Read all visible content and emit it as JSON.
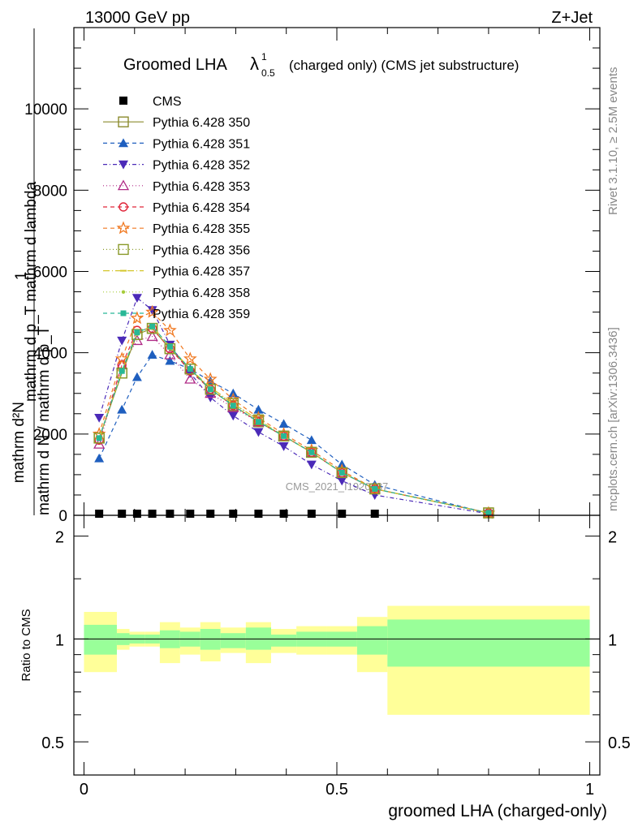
{
  "header": {
    "energy": "13000 GeV pp",
    "process": "Z+Jet",
    "title_main": "Groomed LHA",
    "title_symbol": "λ",
    "title_sup": "1",
    "title_sub": "0.5",
    "title_tail": "(charged only) (CMS jet substructure)",
    "rivet": "Rivet 3.1.10, ≥ 2.5M events",
    "mcplots": "mcplots.cern.ch [arXiv:1306.3436]",
    "watermark": "CMS_2021_I1920187"
  },
  "axes": {
    "ylabel_num": "mathrm d²N",
    "ylabel_den": "mathrm d p_T mathrm d lambda",
    "ylabel_one": "1",
    "ylabel_norm": "mathrm d N / mathrm d p_T",
    "ratio_ylabel": "Ratio to CMS",
    "xlabel": "groomed LHA (charged-only)"
  },
  "chart_data": [
    {
      "type": "line",
      "panel": "main",
      "x": [
        0.03,
        0.075,
        0.105,
        0.135,
        0.17,
        0.21,
        0.25,
        0.295,
        0.345,
        0.395,
        0.45,
        0.51,
        0.575,
        0.8
      ],
      "xlim": [
        -0.02,
        1.02
      ],
      "ylim": [
        0,
        12000
      ],
      "yticks": [
        0,
        2000,
        4000,
        6000,
        8000,
        10000
      ],
      "ytick_labels": [
        "0",
        "2000",
        "4000",
        "6000",
        "8000",
        "10000"
      ],
      "xticks": [
        0,
        0.5,
        1
      ],
      "legend_position": "top-left",
      "cms_y": [
        0,
        0,
        0,
        0,
        0,
        0,
        0,
        0,
        0,
        0,
        0,
        0,
        0
      ],
      "series": [
        {
          "name": "CMS",
          "color": "#000000",
          "marker": "square-filled",
          "dash": "none",
          "y": [
            0,
            0,
            0,
            0,
            0,
            0,
            0,
            0,
            0,
            0,
            0,
            0,
            0,
            null
          ]
        },
        {
          "name": "Pythia 6.428 350",
          "color": "#8b8b2e",
          "marker": "square-open",
          "dash": "solid",
          "y": [
            1900,
            3500,
            4450,
            4600,
            4100,
            3600,
            3100,
            2700,
            2300,
            1950,
            1550,
            1050,
            650,
            60
          ]
        },
        {
          "name": "Pythia 6.428 351",
          "color": "#1f5fbf",
          "marker": "triangle-up-filled",
          "dash": "5,4",
          "y": [
            1400,
            2600,
            3400,
            3950,
            3800,
            3600,
            3300,
            3000,
            2600,
            2250,
            1850,
            1250,
            750,
            50
          ]
        },
        {
          "name": "Pythia 6.428 352",
          "color": "#4b2ab8",
          "marker": "triangle-down-filled",
          "dash": "5,3,1,3",
          "y": [
            2400,
            4300,
            5350,
            5050,
            4200,
            3500,
            2900,
            2450,
            2050,
            1700,
            1250,
            850,
            500,
            40
          ]
        },
        {
          "name": "Pythia 6.428 353",
          "color": "#b02a86",
          "marker": "triangle-up-open",
          "dash": "1,3",
          "y": [
            1750,
            3700,
            4300,
            4400,
            3950,
            3350,
            3000,
            2650,
            2300,
            1950,
            1550,
            1050,
            650,
            60
          ]
        },
        {
          "name": "Pythia 6.428 354",
          "color": "#e0263a",
          "marker": "circle-open",
          "dash": "5,4",
          "y": [
            1850,
            3700,
            4550,
            4600,
            4100,
            3550,
            3100,
            2700,
            2300,
            1950,
            1550,
            1050,
            650,
            60
          ]
        },
        {
          "name": "Pythia 6.428 355",
          "color": "#f07820",
          "marker": "star-open",
          "dash": "5,4",
          "y": [
            2000,
            3850,
            4850,
            5000,
            4550,
            3850,
            3350,
            2850,
            2400,
            2000,
            1600,
            1100,
            650,
            55
          ]
        },
        {
          "name": "Pythia 6.428 356",
          "color": "#8a9a2a",
          "marker": "square-open",
          "dash": "1,3",
          "y": [
            1900,
            3500,
            4450,
            4600,
            4100,
            3600,
            3100,
            2750,
            2350,
            1950,
            1550,
            1050,
            650,
            60
          ]
        },
        {
          "name": "Pythia 6.428 357",
          "color": "#d4c62a",
          "marker": "dash-marker",
          "dash": "8,3,1,3",
          "y": [
            1900,
            3550,
            4500,
            4650,
            4150,
            3600,
            3150,
            2750,
            2350,
            1950,
            1550,
            1050,
            650,
            60
          ]
        },
        {
          "name": "Pythia 6.428 358",
          "color": "#a6cc3a",
          "marker": "dot",
          "dash": "1,3",
          "y": [
            1900,
            3550,
            4450,
            4600,
            4100,
            3600,
            3100,
            2700,
            2300,
            1950,
            1550,
            1050,
            650,
            60
          ]
        },
        {
          "name": "Pythia 6.428 359",
          "color": "#28b896",
          "marker": "square-filled-small",
          "dash": "5,4",
          "y": [
            1900,
            3550,
            4500,
            4650,
            4150,
            3600,
            3100,
            2700,
            2300,
            1950,
            1550,
            1050,
            650,
            60
          ]
        }
      ]
    },
    {
      "type": "area",
      "panel": "ratio",
      "xlim": [
        -0.02,
        1.02
      ],
      "ylim": [
        0.4,
        2.3
      ],
      "yticks": [
        0.5,
        1,
        2
      ],
      "ytick_labels": [
        "0.5",
        "1",
        "2"
      ],
      "xticks": [
        0,
        0.5,
        1
      ],
      "xtick_labels": [
        "0",
        "0.5",
        "1"
      ],
      "bins": [
        {
          "lo": 0.0,
          "hi": 0.065,
          "inner": [
            0.9,
            1.1
          ],
          "outer": [
            0.8,
            1.2
          ]
        },
        {
          "lo": 0.065,
          "hi": 0.09,
          "inner": [
            0.96,
            1.04
          ],
          "outer": [
            0.93,
            1.07
          ]
        },
        {
          "lo": 0.09,
          "hi": 0.12,
          "inner": [
            0.97,
            1.03
          ],
          "outer": [
            0.95,
            1.05
          ]
        },
        {
          "lo": 0.12,
          "hi": 0.15,
          "inner": [
            0.97,
            1.03
          ],
          "outer": [
            0.95,
            1.05
          ]
        },
        {
          "lo": 0.15,
          "hi": 0.19,
          "inner": [
            0.94,
            1.06
          ],
          "outer": [
            0.85,
            1.12
          ]
        },
        {
          "lo": 0.19,
          "hi": 0.23,
          "inner": [
            0.95,
            1.05
          ],
          "outer": [
            0.9,
            1.08
          ]
        },
        {
          "lo": 0.23,
          "hi": 0.27,
          "inner": [
            0.93,
            1.07
          ],
          "outer": [
            0.86,
            1.12
          ]
        },
        {
          "lo": 0.27,
          "hi": 0.32,
          "inner": [
            0.94,
            1.04
          ],
          "outer": [
            0.91,
            1.08
          ]
        },
        {
          "lo": 0.32,
          "hi": 0.37,
          "inner": [
            0.93,
            1.08
          ],
          "outer": [
            0.85,
            1.12
          ]
        },
        {
          "lo": 0.37,
          "hi": 0.42,
          "inner": [
            0.95,
            1.03
          ],
          "outer": [
            0.91,
            1.07
          ]
        },
        {
          "lo": 0.42,
          "hi": 0.48,
          "inner": [
            0.95,
            1.05
          ],
          "outer": [
            0.9,
            1.09
          ]
        },
        {
          "lo": 0.48,
          "hi": 0.54,
          "inner": [
            0.95,
            1.05
          ],
          "outer": [
            0.9,
            1.09
          ]
        },
        {
          "lo": 0.54,
          "hi": 0.6,
          "inner": [
            0.9,
            1.09
          ],
          "outer": [
            0.8,
            1.16
          ]
        },
        {
          "lo": 0.6,
          "hi": 1.0,
          "inner": [
            0.83,
            1.14
          ],
          "outer": [
            0.6,
            1.25
          ]
        }
      ]
    }
  ]
}
